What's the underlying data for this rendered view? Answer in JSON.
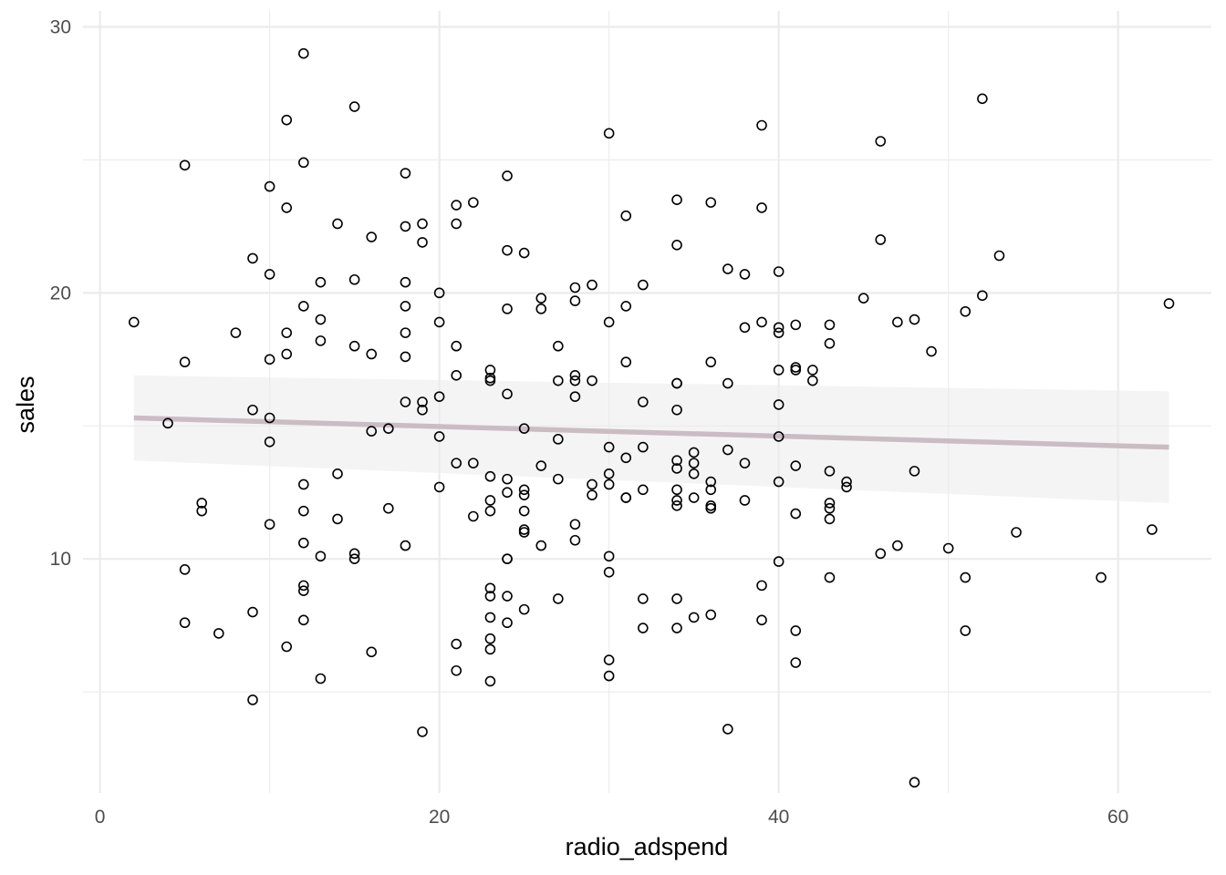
{
  "chart_data": {
    "type": "scatter",
    "title": "",
    "xlabel": "radio_adspend",
    "ylabel": "sales",
    "xlim": [
      -1,
      65.5
    ],
    "ylim": [
      1.2,
      30.6
    ],
    "x_ticks": [
      0,
      20,
      40,
      60
    ],
    "y_ticks": [
      10,
      20,
      30
    ],
    "x_minor": [
      10,
      30,
      50
    ],
    "y_minor": [
      5,
      15,
      25
    ],
    "grid": true,
    "legend": "none",
    "colors": {
      "point_stroke": "#000000",
      "trend_line": "#cbbcc3",
      "confidence_band": "#ebebeb",
      "grid": "#ebebeb"
    },
    "trend": {
      "method": "lm",
      "x": [
        2,
        63
      ],
      "y": [
        15.3,
        14.2
      ],
      "band_lower": [
        13.7,
        12.1
      ],
      "band_upper": [
        16.9,
        16.3
      ]
    },
    "points": [
      [
        2,
        18.9
      ],
      [
        4,
        15.1
      ],
      [
        5,
        24.8
      ],
      [
        5,
        17.4
      ],
      [
        5,
        9.6
      ],
      [
        5,
        7.6
      ],
      [
        6,
        12.1
      ],
      [
        6,
        11.8
      ],
      [
        7,
        7.2
      ],
      [
        8,
        18.5
      ],
      [
        9,
        21.3
      ],
      [
        9,
        15.6
      ],
      [
        9,
        8.0
      ],
      [
        9,
        4.7
      ],
      [
        10,
        24.0
      ],
      [
        10,
        20.7
      ],
      [
        10,
        17.5
      ],
      [
        10,
        15.3
      ],
      [
        10,
        14.4
      ],
      [
        10,
        11.3
      ],
      [
        11,
        26.5
      ],
      [
        11,
        23.2
      ],
      [
        11,
        18.5
      ],
      [
        11,
        17.7
      ],
      [
        11,
        6.7
      ],
      [
        12,
        29.0
      ],
      [
        12,
        24.9
      ],
      [
        12,
        19.5
      ],
      [
        12,
        12.8
      ],
      [
        12,
        11.8
      ],
      [
        12,
        10.6
      ],
      [
        12,
        9.0
      ],
      [
        12,
        8.8
      ],
      [
        12,
        7.7
      ],
      [
        13,
        20.4
      ],
      [
        13,
        19.0
      ],
      [
        13,
        18.2
      ],
      [
        13,
        10.1
      ],
      [
        13,
        5.5
      ],
      [
        14,
        22.6
      ],
      [
        14,
        13.2
      ],
      [
        14,
        11.5
      ],
      [
        15,
        27.0
      ],
      [
        15,
        20.5
      ],
      [
        15,
        18.0
      ],
      [
        15,
        10.2
      ],
      [
        15,
        10.0
      ],
      [
        16,
        22.1
      ],
      [
        16,
        17.7
      ],
      [
        16,
        14.8
      ],
      [
        16,
        6.5
      ],
      [
        17,
        14.9
      ],
      [
        17,
        11.9
      ],
      [
        18,
        24.5
      ],
      [
        18,
        22.5
      ],
      [
        18,
        20.4
      ],
      [
        18,
        19.5
      ],
      [
        18,
        18.5
      ],
      [
        18,
        17.6
      ],
      [
        18,
        15.9
      ],
      [
        18,
        10.5
      ],
      [
        19,
        22.6
      ],
      [
        19,
        21.9
      ],
      [
        19,
        15.9
      ],
      [
        19,
        15.6
      ],
      [
        19,
        3.5
      ],
      [
        20,
        20.0
      ],
      [
        20,
        18.9
      ],
      [
        20,
        16.1
      ],
      [
        20,
        14.6
      ],
      [
        20,
        12.7
      ],
      [
        21,
        23.3
      ],
      [
        21,
        22.6
      ],
      [
        21,
        18.0
      ],
      [
        21,
        16.9
      ],
      [
        21,
        13.6
      ],
      [
        21,
        6.8
      ],
      [
        21,
        5.8
      ],
      [
        22,
        23.4
      ],
      [
        22,
        13.6
      ],
      [
        22,
        11.6
      ],
      [
        23,
        17.1
      ],
      [
        23,
        16.8
      ],
      [
        23,
        16.7
      ],
      [
        23,
        13.1
      ],
      [
        23,
        12.2
      ],
      [
        23,
        11.8
      ],
      [
        23,
        8.9
      ],
      [
        23,
        8.6
      ],
      [
        23,
        7.8
      ],
      [
        23,
        7.0
      ],
      [
        23,
        6.6
      ],
      [
        23,
        5.4
      ],
      [
        24,
        24.4
      ],
      [
        24,
        21.6
      ],
      [
        24,
        19.4
      ],
      [
        24,
        16.2
      ],
      [
        24,
        13.0
      ],
      [
        24,
        12.5
      ],
      [
        24,
        10.0
      ],
      [
        24,
        10.0
      ],
      [
        24,
        8.6
      ],
      [
        24,
        7.6
      ],
      [
        25,
        21.5
      ],
      [
        25,
        14.9
      ],
      [
        25,
        12.6
      ],
      [
        25,
        12.4
      ],
      [
        25,
        11.8
      ],
      [
        25,
        11.1
      ],
      [
        25,
        11.0
      ],
      [
        25,
        8.1
      ],
      [
        26,
        19.8
      ],
      [
        26,
        19.4
      ],
      [
        26,
        13.5
      ],
      [
        26,
        10.5
      ],
      [
        27,
        18.0
      ],
      [
        27,
        16.7
      ],
      [
        27,
        14.5
      ],
      [
        27,
        13.0
      ],
      [
        27,
        8.5
      ],
      [
        28,
        20.2
      ],
      [
        28,
        19.7
      ],
      [
        28,
        16.9
      ],
      [
        28,
        16.7
      ],
      [
        28,
        16.1
      ],
      [
        28,
        11.3
      ],
      [
        28,
        10.7
      ],
      [
        29,
        20.3
      ],
      [
        29,
        16.7
      ],
      [
        29,
        12.8
      ],
      [
        29,
        12.4
      ],
      [
        30,
        26.0
      ],
      [
        30,
        18.9
      ],
      [
        30,
        14.2
      ],
      [
        30,
        13.2
      ],
      [
        30,
        12.8
      ],
      [
        30,
        10.1
      ],
      [
        30,
        9.5
      ],
      [
        30,
        6.2
      ],
      [
        30,
        5.6
      ],
      [
        31,
        22.9
      ],
      [
        31,
        19.5
      ],
      [
        31,
        17.4
      ],
      [
        31,
        13.8
      ],
      [
        31,
        12.3
      ],
      [
        31,
        12.3
      ],
      [
        32,
        20.3
      ],
      [
        32,
        15.9
      ],
      [
        32,
        14.2
      ],
      [
        32,
        12.6
      ],
      [
        32,
        8.5
      ],
      [
        32,
        7.4
      ],
      [
        34,
        23.5
      ],
      [
        34,
        21.8
      ],
      [
        34,
        16.6
      ],
      [
        34,
        16.6
      ],
      [
        34,
        15.6
      ],
      [
        34,
        13.7
      ],
      [
        34,
        13.4
      ],
      [
        34,
        12.6
      ],
      [
        34,
        12.2
      ],
      [
        34,
        12.0
      ],
      [
        34,
        8.5
      ],
      [
        34,
        7.4
      ],
      [
        35,
        14.0
      ],
      [
        35,
        13.6
      ],
      [
        35,
        13.2
      ],
      [
        35,
        12.3
      ],
      [
        35,
        7.8
      ],
      [
        36,
        23.4
      ],
      [
        36,
        17.4
      ],
      [
        36,
        12.9
      ],
      [
        36,
        12.6
      ],
      [
        36,
        12.0
      ],
      [
        36,
        11.9
      ],
      [
        36,
        7.9
      ],
      [
        37,
        20.9
      ],
      [
        37,
        16.6
      ],
      [
        37,
        14.1
      ],
      [
        37,
        3.6
      ],
      [
        38,
        20.7
      ],
      [
        38,
        18.7
      ],
      [
        38,
        13.6
      ],
      [
        38,
        12.2
      ],
      [
        39,
        26.3
      ],
      [
        39,
        23.2
      ],
      [
        39,
        18.9
      ],
      [
        39,
        9.0
      ],
      [
        39,
        7.7
      ],
      [
        40,
        20.8
      ],
      [
        40,
        18.7
      ],
      [
        40,
        18.5
      ],
      [
        40,
        17.1
      ],
      [
        40,
        15.8
      ],
      [
        40,
        14.6
      ],
      [
        40,
        12.9
      ],
      [
        40,
        9.9
      ],
      [
        41,
        18.8
      ],
      [
        41,
        17.2
      ],
      [
        41,
        17.1
      ],
      [
        41,
        13.5
      ],
      [
        41,
        11.7
      ],
      [
        41,
        7.3
      ],
      [
        41,
        6.1
      ],
      [
        42,
        17.1
      ],
      [
        42,
        16.7
      ],
      [
        43,
        18.8
      ],
      [
        43,
        18.1
      ],
      [
        43,
        13.3
      ],
      [
        43,
        12.1
      ],
      [
        43,
        11.9
      ],
      [
        43,
        11.5
      ],
      [
        43,
        9.3
      ],
      [
        44,
        12.9
      ],
      [
        44,
        12.7
      ],
      [
        45,
        19.8
      ],
      [
        46,
        25.7
      ],
      [
        46,
        22.0
      ],
      [
        46,
        10.2
      ],
      [
        47,
        18.9
      ],
      [
        47,
        10.5
      ],
      [
        48,
        19.0
      ],
      [
        48,
        13.3
      ],
      [
        48,
        1.6
      ],
      [
        49,
        17.8
      ],
      [
        50,
        10.4
      ],
      [
        51,
        19.3
      ],
      [
        51,
        9.3
      ],
      [
        51,
        7.3
      ],
      [
        52,
        27.3
      ],
      [
        52,
        19.9
      ],
      [
        53,
        21.4
      ],
      [
        54,
        11.0
      ],
      [
        59,
        9.3
      ],
      [
        62,
        11.1
      ],
      [
        63,
        19.6
      ]
    ]
  }
}
